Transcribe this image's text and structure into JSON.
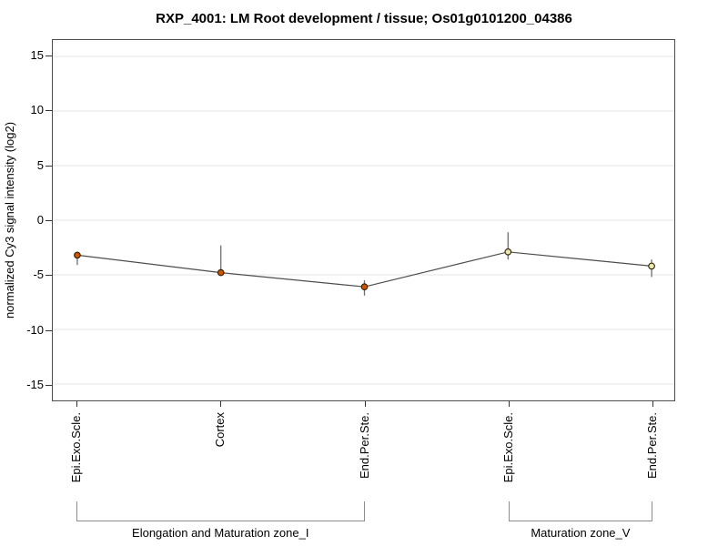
{
  "title": "RXP_4001: LM Root development / tissue; Os01g0101200_04386",
  "chart_data": {
    "type": "line",
    "title": "RXP_4001: LM Root development / tissue; Os01g0101200_04386",
    "ylabel": "normalized Cy3 signal intensity (log2)",
    "ylim": [
      -16.5,
      16.5
    ],
    "yticks": [
      15,
      10,
      5,
      0,
      -5,
      -10,
      -15
    ],
    "grid": true,
    "legend": "none",
    "categories": [
      "Epi.Exo.Scle.",
      "Cortex",
      "End.Per.Ste.",
      "Epi.Exo.Scle.",
      "End.Per.Ste."
    ],
    "series": [
      {
        "values": [
          -3.2,
          -4.8,
          -6.1,
          -2.9,
          -4.2
        ],
        "error_high": [
          -2.9,
          -2.3,
          -5.5,
          -1.1,
          -3.6
        ],
        "error_low": [
          -4.1,
          -5.0,
          -6.9,
          -3.6,
          -5.2
        ],
        "point_fills": [
          "#cc5500",
          "#cc5500",
          "#cc5500",
          "#e9e9ad",
          "#e9e9ad"
        ]
      }
    ],
    "groups": [
      {
        "label": "Elongation and Maturation zone_I",
        "from": 0,
        "to": 2
      },
      {
        "label": "Maturation zone_V",
        "from": 3,
        "to": 4
      }
    ],
    "colors": {
      "line": "#4d4d4d",
      "error_bar": "#6e6e6e",
      "point_outline": "#2a1a00",
      "grid": "#e4e4e4",
      "plot_border": "#4d4d4d",
      "tick": "#333333",
      "bracket": "#8c8c8c",
      "text": "#000000"
    }
  }
}
